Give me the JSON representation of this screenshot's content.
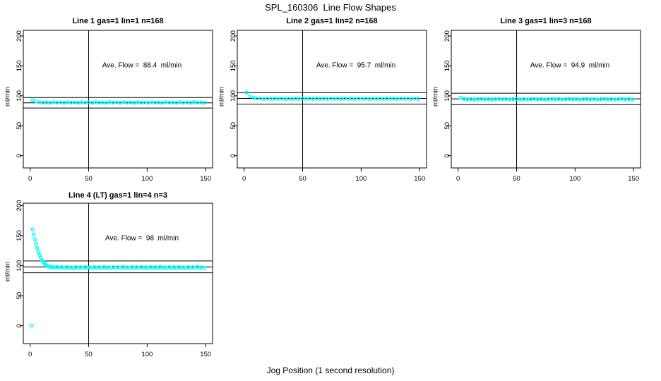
{
  "main_title": "SPL_160306  Line Flow Shapes",
  "x_axis_title": "Jog Position (1 second resolution)",
  "point_color": "#00FFFF",
  "axis_color": "#000000",
  "chart_data": [
    {
      "type": "scatter",
      "title": "Line 1 gas=1 lin=1 n=168",
      "ylabel": "ml/min",
      "xlabel": "",
      "n": 168,
      "avg_flow": 88.4,
      "avg_flow_label": "Ave. Flow =  88.4  ml/min",
      "xlim": [
        0,
        150
      ],
      "ylim": [
        0,
        200
      ],
      "x_ticks": [
        0,
        50,
        100,
        150
      ],
      "y_ticks": [
        0,
        50,
        100,
        150,
        200
      ],
      "vline_x": 50,
      "ref_lines": [
        97.2,
        88.4,
        79.6
      ],
      "u": [
        2,
        5,
        8,
        11,
        14,
        17,
        20,
        23,
        26,
        29,
        32,
        35,
        38,
        41,
        44,
        47,
        50,
        53,
        56,
        59,
        62,
        65,
        68,
        71,
        74,
        77,
        80,
        83,
        86,
        89,
        92,
        95,
        98,
        101,
        104,
        107,
        110,
        113,
        116,
        119,
        122,
        125,
        128,
        131,
        134,
        137,
        140,
        143,
        146,
        149
      ],
      "v": [
        92.8,
        90.6,
        89.4,
        88.6,
        89.1,
        88.3,
        89.4,
        88.6,
        89.1,
        88.3,
        89.4,
        88.6,
        89.1,
        88.3,
        89.4,
        88.6,
        89.1,
        88.3,
        89.4,
        88.6,
        89.1,
        88.3,
        89.4,
        88.6,
        89.1,
        88.3,
        89.4,
        88.6,
        89.1,
        88.3,
        89.4,
        88.6,
        89.1,
        88.3,
        89.4,
        88.6,
        89.1,
        88.3,
        89.4,
        88.6,
        89.1,
        88.3,
        89.4,
        88.6,
        89.1,
        88.3,
        89.4,
        88.6,
        89.1,
        88.3
      ]
    },
    {
      "type": "scatter",
      "title": "Line 2 gas=1 lin=2 n=168",
      "ylabel": "ml/min",
      "xlabel": "",
      "n": 168,
      "avg_flow": 95.7,
      "avg_flow_label": "Ave. Flow =  95.7  ml/min",
      "xlim": [
        0,
        150
      ],
      "ylim": [
        0,
        200
      ],
      "x_ticks": [
        0,
        50,
        100,
        150
      ],
      "y_ticks": [
        0,
        50,
        100,
        150,
        200
      ],
      "vline_x": 50,
      "ref_lines": [
        105.3,
        95.7,
        86.1
      ],
      "u": [
        2,
        5,
        8,
        11,
        14,
        17,
        20,
        23,
        26,
        29,
        32,
        35,
        38,
        41,
        44,
        47,
        50,
        53,
        56,
        59,
        62,
        65,
        68,
        71,
        74,
        77,
        80,
        83,
        86,
        89,
        92,
        95,
        98,
        101,
        104,
        107,
        110,
        113,
        116,
        119,
        122,
        125,
        128,
        131,
        134,
        137,
        140,
        143,
        146,
        149
      ],
      "v": [
        105.8,
        99.5,
        96.9,
        95.9,
        95.6,
        94.9,
        95.4,
        94.8,
        95.6,
        94.9,
        95.4,
        94.8,
        95.6,
        94.9,
        95.4,
        94.8,
        95.6,
        94.9,
        95.4,
        94.8,
        95.6,
        94.9,
        95.4,
        94.8,
        95.6,
        94.9,
        95.4,
        94.8,
        95.6,
        94.9,
        95.4,
        94.8,
        95.6,
        94.9,
        95.4,
        94.8,
        95.6,
        94.9,
        95.4,
        94.8,
        95.6,
        94.9,
        95.4,
        94.8,
        95.6,
        94.9,
        95.4,
        94.8,
        95.6,
        94.9
      ]
    },
    {
      "type": "scatter",
      "title": "Line 3 gas=1 lin=3 n=168",
      "ylabel": "ml/min",
      "xlabel": "",
      "n": 168,
      "avg_flow": 94.9,
      "avg_flow_label": "Ave. Flow =  94.9  ml/min",
      "xlim": [
        0,
        150
      ],
      "ylim": [
        0,
        200
      ],
      "x_ticks": [
        0,
        50,
        100,
        150
      ],
      "y_ticks": [
        0,
        50,
        100,
        150,
        200
      ],
      "vline_x": 50,
      "ref_lines": [
        104.4,
        94.9,
        85.4
      ],
      "u": [
        2,
        5,
        8,
        11,
        14,
        17,
        20,
        23,
        26,
        29,
        32,
        35,
        38,
        41,
        44,
        47,
        50,
        53,
        56,
        59,
        62,
        65,
        68,
        71,
        74,
        77,
        80,
        83,
        86,
        89,
        92,
        95,
        98,
        101,
        104,
        107,
        110,
        113,
        116,
        119,
        122,
        125,
        128,
        131,
        134,
        137,
        140,
        143,
        146,
        149
      ],
      "v": [
        96.8,
        95.0,
        94.2,
        94.7,
        94.0,
        94.5,
        95.0,
        94.2,
        94.7,
        94.0,
        94.5,
        95.0,
        94.2,
        94.7,
        94.0,
        94.5,
        95.0,
        94.2,
        94.7,
        94.0,
        94.5,
        95.0,
        94.2,
        94.7,
        94.0,
        94.5,
        95.0,
        94.2,
        94.7,
        94.0,
        94.5,
        95.0,
        94.2,
        94.7,
        94.0,
        94.5,
        95.0,
        94.2,
        94.7,
        94.0,
        94.5,
        95.0,
        94.2,
        94.7,
        94.0,
        94.5,
        95.0,
        94.2,
        94.7,
        94.0
      ]
    },
    {
      "type": "scatter",
      "title": "Line 4 (LT) gas=1 lin=4 n=3",
      "ylabel": "ml/min",
      "xlabel": "",
      "n": 3,
      "avg_flow": 98,
      "avg_flow_label": "Ave. Flow =  98  ml/min",
      "xlim": [
        0,
        150
      ],
      "ylim": [
        0,
        200
      ],
      "x_ticks": [
        0,
        50,
        100,
        150
      ],
      "y_ticks": [
        0,
        50,
        100,
        150,
        200
      ],
      "vline_x": 50,
      "ref_lines": [
        107.8,
        98,
        88.2
      ],
      "u": [
        1.2,
        2,
        3,
        4,
        5,
        6,
        7,
        8,
        9,
        10,
        11,
        12,
        13,
        14,
        15,
        16,
        17,
        18,
        19,
        20,
        21,
        23,
        25,
        27,
        29,
        31,
        33,
        35,
        37,
        39,
        41,
        43,
        45,
        47,
        49,
        51,
        53,
        55,
        57,
        59,
        61,
        63,
        65,
        67,
        69,
        71,
        73,
        75,
        77,
        79,
        81,
        83,
        85,
        87,
        89,
        91,
        93,
        95,
        97,
        99,
        101,
        103,
        105,
        107,
        109,
        111,
        113,
        115,
        117,
        119,
        121,
        123,
        125,
        127,
        129,
        131,
        133,
        135,
        137,
        139,
        141,
        143,
        145,
        147,
        149
      ],
      "v": [
        0.4,
        160.5,
        152.0,
        144.0,
        136.5,
        129.5,
        123.5,
        118.0,
        113.5,
        109.5,
        106.5,
        104.0,
        102.0,
        100.5,
        99.5,
        98.7,
        98.1,
        97.7,
        97.4,
        97.2,
        97.0,
        97.6,
        96.5,
        97.3,
        96.2,
        98.0,
        96.8,
        97.0,
        96.1,
        97.6,
        96.5,
        97.3,
        96.2,
        98.0,
        96.8,
        97.0,
        96.1,
        97.6,
        96.5,
        97.3,
        96.2,
        98.0,
        96.8,
        97.0,
        96.1,
        97.6,
        96.5,
        97.3,
        96.2,
        98.0,
        96.8,
        97.0,
        96.1,
        97.6,
        96.5,
        97.3,
        96.2,
        98.0,
        96.8,
        97.0,
        96.1,
        97.6,
        96.5,
        97.3,
        96.2,
        98.0,
        96.8,
        97.0,
        96.1,
        97.6,
        96.5,
        97.3,
        96.2,
        98.0,
        96.8,
        97.0,
        96.1,
        97.6,
        96.5,
        97.3,
        96.2,
        98.0,
        96.8,
        97.0,
        96.1
      ]
    }
  ]
}
